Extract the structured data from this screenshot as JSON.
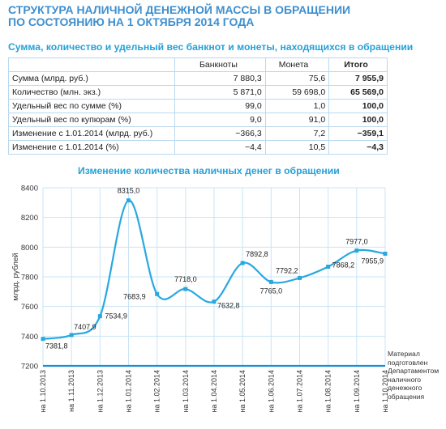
{
  "title_lines": [
    "СТРУКТУРА НАЛИЧНОЙ ДЕНЕЖНОЙ МАССЫ В ОБРАЩЕНИИ",
    "ПО СОСТОЯНИЮ НА 1 ОКТЯБРЯ 2014 ГОДА"
  ],
  "table_title": "Сумма, количество и удельный вес банкнот и монеты, находящихся в обращении",
  "table": {
    "headers": [
      "",
      "Банкноты",
      "Монета",
      "Итого"
    ],
    "rows": [
      [
        "Сумма (млрд. руб.)",
        "7 880,3",
        "75,6",
        "7 955,9"
      ],
      [
        "Количество (млн. экз.)",
        "5 871,0",
        "59 698,0",
        "65 569,0"
      ],
      [
        "Удельный вес по сумме (%)",
        "99,0",
        "1,0",
        "100,0"
      ],
      [
        "Удельный вес по купюрам (%)",
        "9,0",
        "91,0",
        "100,0"
      ],
      [
        "Изменение с 1.01.2014 (млрд. руб.)",
        "−366,3",
        "7,2",
        "−359,1"
      ],
      [
        "Изменение с 1.01.2014 (%)",
        "−4,4",
        "10,5",
        "−4,3"
      ]
    ]
  },
  "chart_title": "Изменение количества наличных денег в обращении",
  "source_note": [
    "Материал",
    "подготовлен",
    "Департаментом",
    "наличного",
    "денежного",
    "обращения"
  ],
  "colors": {
    "accent": "#26a1d8",
    "line": "#29a8e0",
    "grid": "#c9e4f4",
    "bold_rule": "#1f8ecf"
  },
  "chart_data": {
    "type": "line",
    "title": "Изменение количества наличных денег в обращении",
    "xlabel": "",
    "ylabel": "млрд. рублей",
    "categories": [
      "на 1.10.2013",
      "на 1.11.2013",
      "на 1.12.2013",
      "на 1.01.2014",
      "на 1.02.2014",
      "на 1.03.2014",
      "на 1.04.2014",
      "на 1.05.2014",
      "на 1.06.2014",
      "на 1.07.2014",
      "на 1.08.2014",
      "на 1.09.2014",
      "на 1.10.2014"
    ],
    "values": [
      7381.8,
      7407.9,
      7534.9,
      8315.0,
      7683.9,
      7718.0,
      7632.8,
      7892.8,
      7765.0,
      7792.2,
      7868.2,
      7977.0,
      7955.9
    ],
    "labels": [
      "7381,8",
      "7407,9",
      "7534,9",
      "8315,0",
      "7683,9",
      "7718,0",
      "7632,8",
      "7892,8",
      "7765,0",
      "7792,2",
      "7868,2",
      "7977,0",
      "7955,9"
    ],
    "ylim": [
      7200,
      8400
    ],
    "yticks": [
      7200,
      7400,
      7600,
      7800,
      8000,
      8200,
      8400
    ],
    "ytick_labels": [
      "7200",
      "7400",
      "7600",
      "7800",
      "8000",
      "8200",
      "8400"
    ],
    "grid": true,
    "smooth": true
  }
}
